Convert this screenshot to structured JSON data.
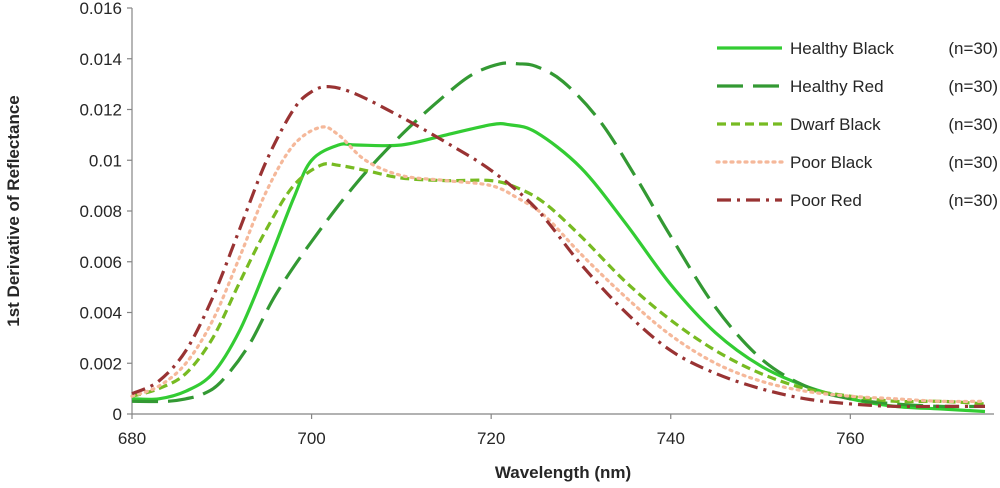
{
  "chart_data": {
    "type": "line",
    "title": "",
    "xlabel": "Wavelength (nm)",
    "ylabel": "1st Derivative of Reflectance",
    "xlim": [
      680,
      776
    ],
    "ylim": [
      0,
      0.016
    ],
    "x_ticks": [
      680,
      700,
      720,
      740,
      760
    ],
    "y_ticks": [
      0,
      0.002,
      0.004,
      0.006,
      0.008,
      0.01,
      0.012,
      0.014,
      0.016
    ],
    "y_tick_labels": [
      "0",
      "0.002",
      "0.004",
      "0.006",
      "0.008",
      "0.01",
      "0.012",
      "0.014",
      "0.016"
    ],
    "legend_position": "top-right",
    "series": [
      {
        "name": "Healthy Black",
        "n": "(n=30)",
        "color": "#33cc33",
        "dash": "solid",
        "x": [
          680,
          683,
          686,
          689,
          692,
          695,
          698,
          700,
          703,
          705,
          710,
          715,
          720,
          722,
          725,
          730,
          735,
          740,
          745,
          750,
          755,
          760,
          765,
          770,
          775
        ],
        "y": [
          0.0006,
          0.0006,
          0.0009,
          0.0016,
          0.0033,
          0.0058,
          0.0085,
          0.01,
          0.0106,
          0.0106,
          0.0106,
          0.011,
          0.0114,
          0.0114,
          0.0111,
          0.0097,
          0.0075,
          0.0051,
          0.0032,
          0.0019,
          0.0011,
          0.0006,
          0.0003,
          0.0002,
          0.0001
        ]
      },
      {
        "name": "Healthy Red",
        "n": "(n=30)",
        "color": "#339933",
        "dash": "long-dash",
        "x": [
          680,
          684,
          686,
          688,
          690,
          693,
          696,
          700,
          705,
          710,
          715,
          718,
          721,
          723,
          725,
          728,
          732,
          736,
          740,
          745,
          750,
          755,
          760,
          765,
          770,
          775
        ],
        "y": [
          0.0005,
          0.0005,
          0.0006,
          0.0008,
          0.0013,
          0.0027,
          0.0047,
          0.0068,
          0.0091,
          0.011,
          0.0126,
          0.0134,
          0.0138,
          0.0138,
          0.0137,
          0.0131,
          0.0116,
          0.0094,
          0.007,
          0.0042,
          0.0022,
          0.0011,
          0.0006,
          0.0004,
          0.0003,
          0.0003
        ]
      },
      {
        "name": "Dwarf Black",
        "n": "(n=30)",
        "color": "#77bb22",
        "dash": "dash",
        "x": [
          680,
          683,
          686,
          689,
          692,
          695,
          698,
          701,
          703,
          706,
          710,
          715,
          720,
          723,
          726,
          730,
          735,
          740,
          745,
          750,
          755,
          760,
          765,
          770,
          775
        ],
        "y": [
          0.0007,
          0.001,
          0.0016,
          0.003,
          0.0052,
          0.0073,
          0.009,
          0.0098,
          0.0098,
          0.0096,
          0.0093,
          0.0092,
          0.0092,
          0.0089,
          0.0083,
          0.007,
          0.0052,
          0.0037,
          0.0025,
          0.0016,
          0.001,
          0.0007,
          0.0005,
          0.0005,
          0.0004
        ]
      },
      {
        "name": "Poor Black",
        "n": "(n=30)",
        "color": "#f5b89a",
        "dash": "dot",
        "x": [
          680,
          683,
          686,
          689,
          692,
          695,
          698,
          701,
          703,
          706,
          710,
          715,
          720,
          723,
          726,
          730,
          735,
          740,
          745,
          750,
          755,
          760,
          765,
          770,
          775
        ],
        "y": [
          0.0007,
          0.0011,
          0.002,
          0.0037,
          0.0062,
          0.0088,
          0.0106,
          0.0113,
          0.011,
          0.01,
          0.0094,
          0.0092,
          0.009,
          0.0085,
          0.0078,
          0.0063,
          0.0046,
          0.0031,
          0.002,
          0.0013,
          0.0009,
          0.0007,
          0.0006,
          0.0005,
          0.0005
        ]
      },
      {
        "name": "Poor Red",
        "n": "(n=30)",
        "color": "#993333",
        "dash": "dash-dot",
        "x": [
          680,
          683,
          686,
          689,
          692,
          695,
          698,
          700,
          702,
          705,
          710,
          715,
          720,
          725,
          730,
          735,
          740,
          745,
          750,
          755,
          760,
          765,
          770,
          775
        ],
        "y": [
          0.0008,
          0.0013,
          0.0025,
          0.0046,
          0.0073,
          0.01,
          0.012,
          0.0127,
          0.0129,
          0.0126,
          0.0117,
          0.0107,
          0.0096,
          0.0081,
          0.0059,
          0.004,
          0.0025,
          0.0016,
          0.001,
          0.0006,
          0.0004,
          0.0003,
          0.0003,
          0.0003
        ]
      }
    ]
  }
}
